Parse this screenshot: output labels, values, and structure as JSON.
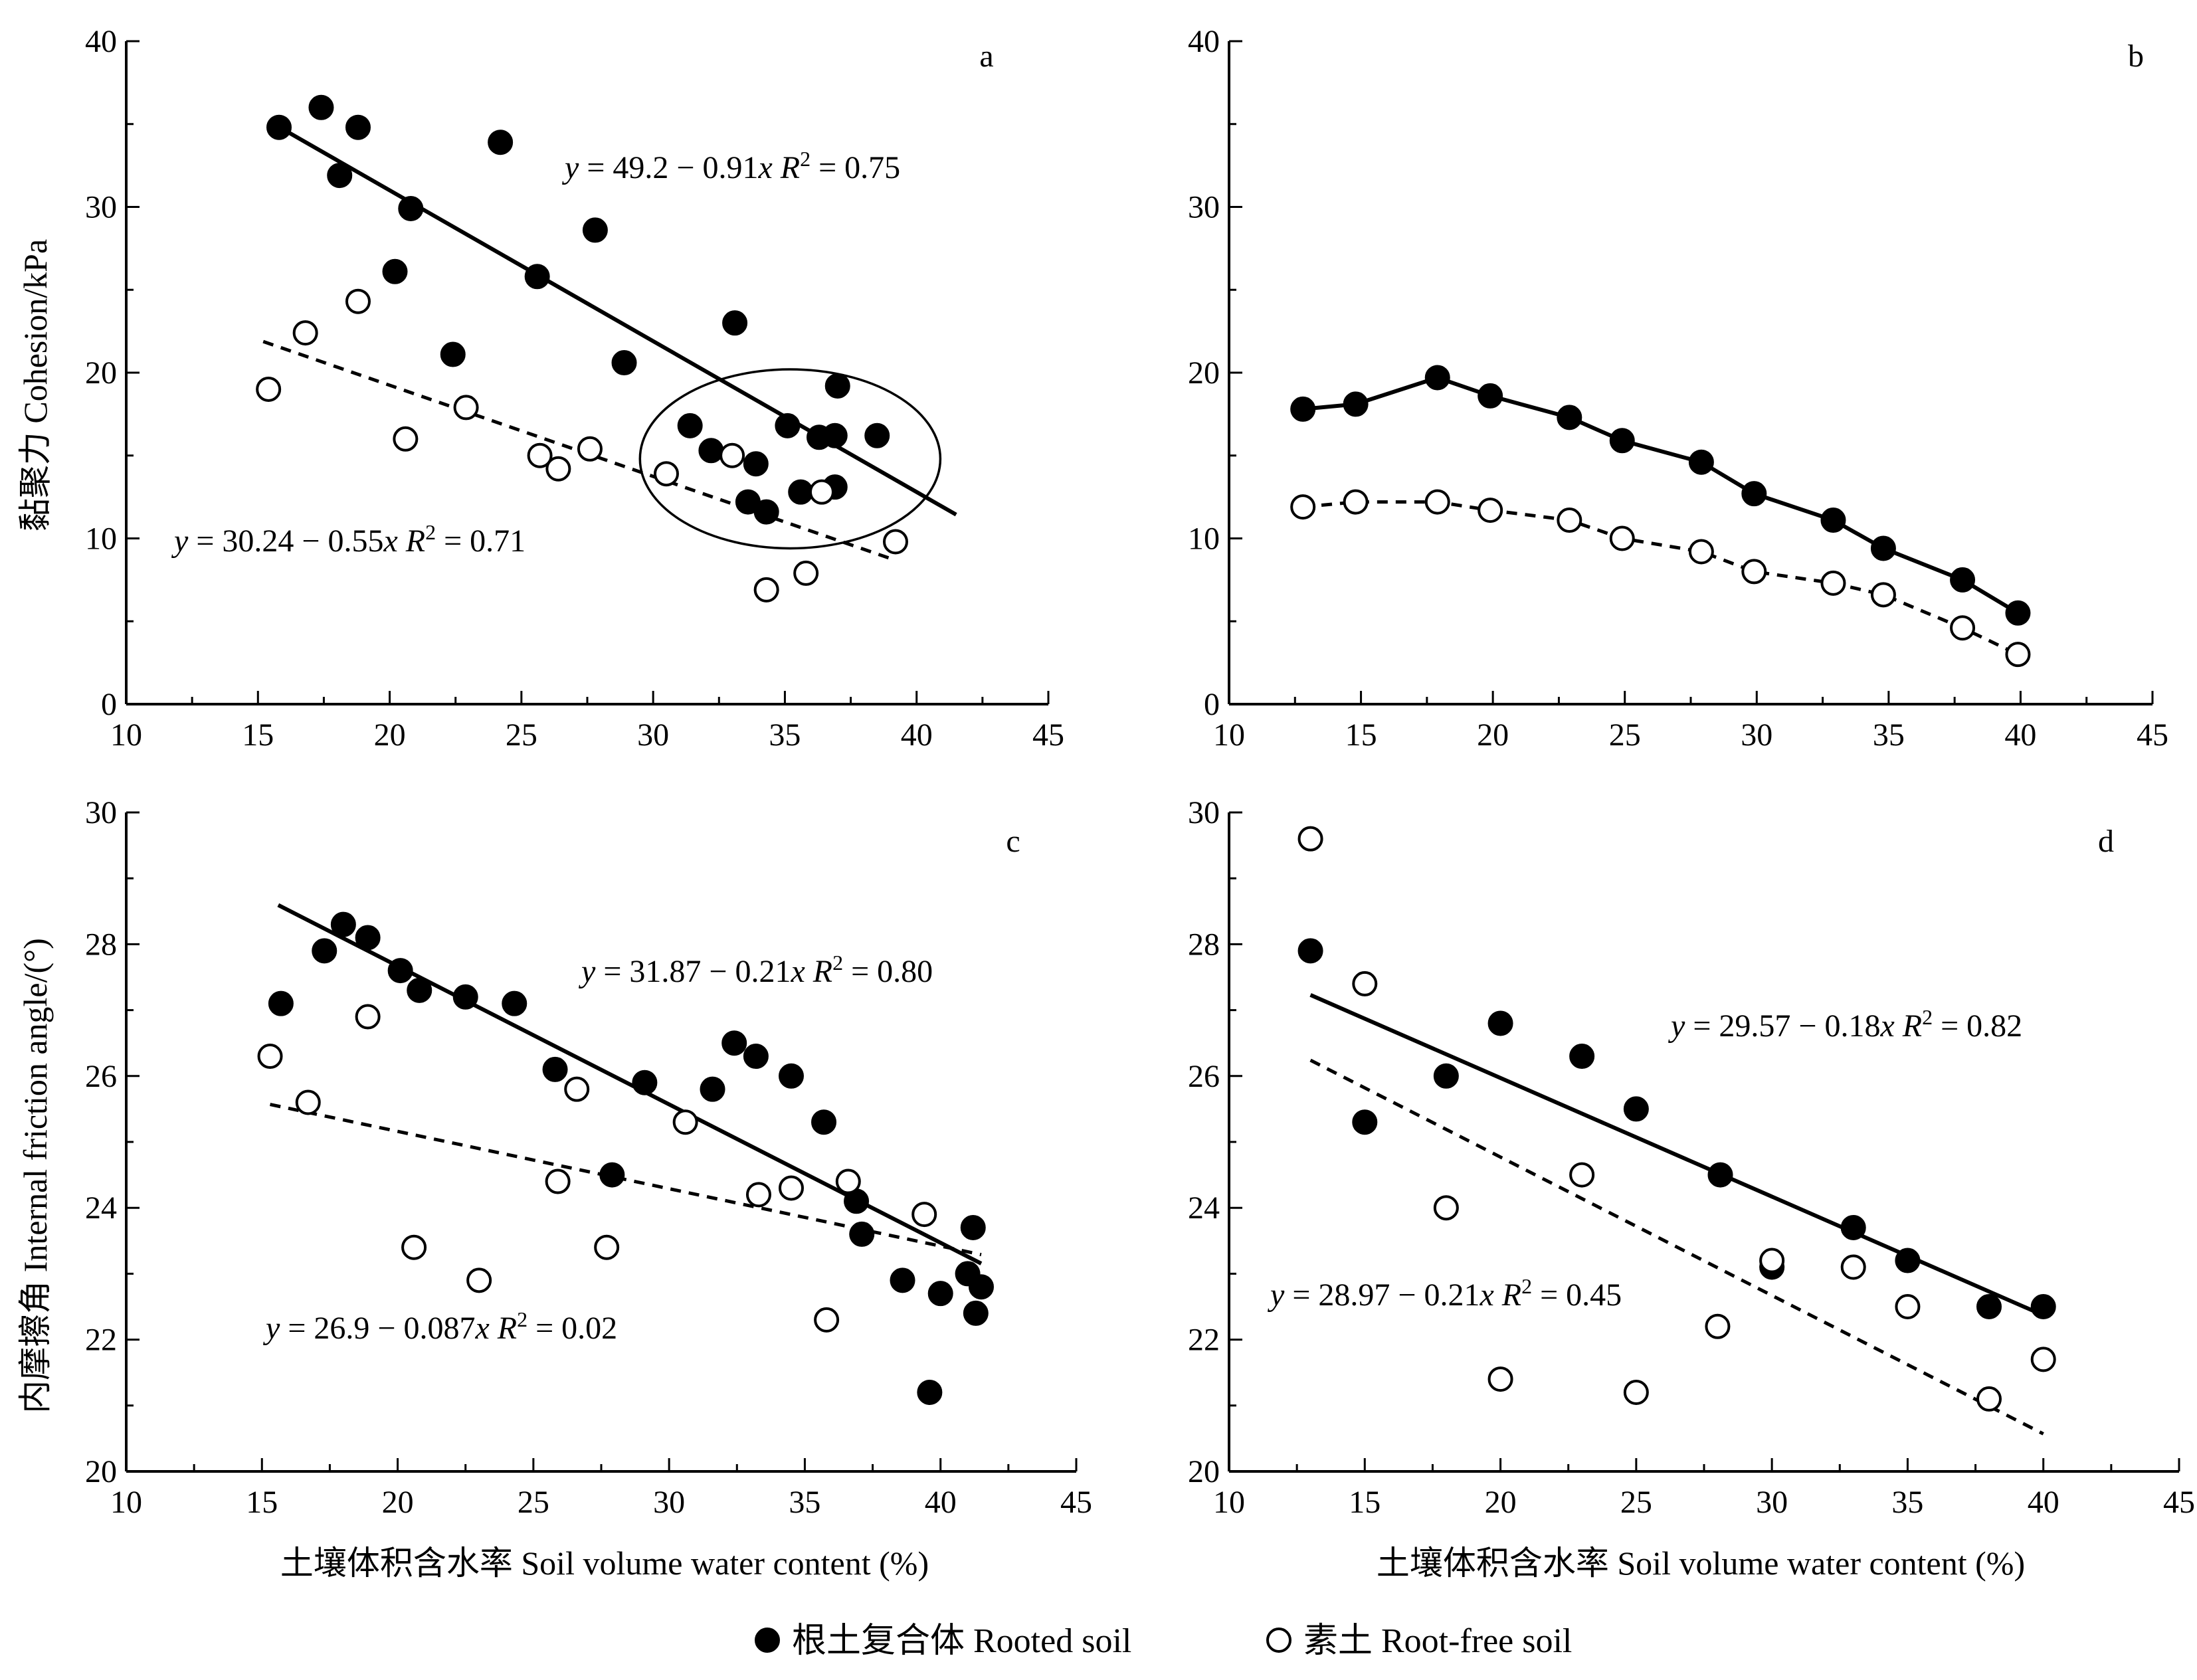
{
  "legend": {
    "rooted_label": "根土复合体 Rooted soil",
    "rootfree_label": "素土 Root-free soil"
  },
  "y_labels": {
    "top": "黏聚力  Cohesion/kPa",
    "bottom": "内摩擦角  Internal friction angle/(°)"
  },
  "x_label": "土壤体积含水率  Soil volume water content (%)",
  "chart_data": [
    {
      "id": "a",
      "type": "scatter",
      "panel_letter": "a",
      "xlim": [
        10,
        45
      ],
      "ylim": [
        0,
        40
      ],
      "xticks": [
        10,
        15,
        20,
        25,
        30,
        35,
        40,
        45
      ],
      "yticks": [
        0,
        10,
        20,
        30,
        40
      ],
      "ylabel": "黏聚力  Cohesion/kPa",
      "xlabel": "",
      "series": [
        {
          "name": "根土复合体 Rooted soil",
          "marker": "filled",
          "points": [
            [
              15.8,
              34.8
            ],
            [
              17.4,
              36.0
            ],
            [
              18.1,
              31.9
            ],
            [
              18.8,
              34.8
            ],
            [
              20.2,
              26.1
            ],
            [
              20.8,
              29.9
            ],
            [
              22.4,
              21.1
            ],
            [
              24.2,
              33.9
            ],
            [
              25.6,
              25.8
            ],
            [
              27.8,
              28.6
            ],
            [
              28.9,
              20.6
            ],
            [
              31.4,
              16.8
            ],
            [
              32.2,
              15.3
            ],
            [
              33.1,
              23.0
            ],
            [
              33.6,
              12.2
            ],
            [
              33.9,
              14.5
            ],
            [
              34.3,
              11.6
            ],
            [
              35.1,
              16.8
            ],
            [
              35.6,
              12.8
            ],
            [
              36.3,
              16.1
            ],
            [
              36.9,
              13.1
            ],
            [
              36.9,
              16.2
            ],
            [
              37.0,
              19.2
            ],
            [
              38.5,
              16.2
            ]
          ],
          "fit_equation": "y = 49.2 − 0.91x  R² = 0.75",
          "fit": {
            "intercept": 49.2,
            "slope": -0.91,
            "x_range": [
              15.5,
              41.5
            ]
          }
        },
        {
          "name": "素土 Root-free soil",
          "marker": "open",
          "points": [
            [
              15.4,
              19.0
            ],
            [
              16.8,
              22.4
            ],
            [
              18.8,
              24.3
            ],
            [
              20.6,
              16.0
            ],
            [
              22.9,
              17.9
            ],
            [
              25.7,
              15.0
            ],
            [
              26.4,
              14.2
            ],
            [
              27.6,
              15.4
            ],
            [
              30.5,
              13.9
            ],
            [
              33.0,
              15.0
            ],
            [
              34.3,
              6.9
            ],
            [
              35.8,
              7.9
            ],
            [
              36.4,
              12.8
            ],
            [
              39.2,
              9.8
            ]
          ],
          "fit_equation": "y = 30.24 − 0.55x  R² = 0.71",
          "fit": {
            "intercept": 30.24,
            "slope": -0.55,
            "x_range": [
              15.2,
              39.2
            ]
          }
        }
      ],
      "annotations": [
        {
          "type": "ellipse",
          "center": [
            35.2,
            14.8
          ],
          "radius": [
            5.7,
            5.4
          ]
        }
      ]
    },
    {
      "id": "b",
      "type": "line",
      "panel_letter": "b",
      "xlim": [
        10,
        45
      ],
      "ylim": [
        0,
        40
      ],
      "xticks": [
        10,
        15,
        20,
        25,
        30,
        35,
        40,
        45
      ],
      "yticks": [
        0,
        10,
        20,
        30,
        40
      ],
      "xlabel": "",
      "ylabel": "",
      "series": [
        {
          "name": "根土复合体 Rooted soil",
          "marker": "filled",
          "line": "solid",
          "points": [
            [
              12.8,
              17.8
            ],
            [
              14.8,
              18.1
            ],
            [
              17.9,
              19.7
            ],
            [
              19.9,
              18.6
            ],
            [
              22.9,
              17.3
            ],
            [
              24.9,
              15.9
            ],
            [
              27.9,
              14.6
            ],
            [
              29.9,
              12.7
            ],
            [
              32.9,
              11.1
            ],
            [
              34.8,
              9.4
            ],
            [
              37.8,
              7.5
            ],
            [
              39.9,
              5.5
            ]
          ]
        },
        {
          "name": "素土 Root-free soil",
          "marker": "open",
          "line": "dashed",
          "points": [
            [
              12.8,
              11.9
            ],
            [
              14.8,
              12.2
            ],
            [
              17.9,
              12.2
            ],
            [
              19.9,
              11.7
            ],
            [
              22.9,
              11.1
            ],
            [
              24.9,
              10.0
            ],
            [
              27.9,
              9.2
            ],
            [
              29.9,
              8.0
            ],
            [
              32.9,
              7.3
            ],
            [
              34.8,
              6.6
            ],
            [
              37.8,
              4.6
            ],
            [
              39.9,
              3.0
            ]
          ]
        }
      ]
    },
    {
      "id": "c",
      "type": "scatter",
      "panel_letter": "c",
      "xlim": [
        10,
        45
      ],
      "ylim": [
        20,
        30
      ],
      "xticks": [
        10,
        15,
        20,
        25,
        30,
        35,
        40,
        45
      ],
      "yticks": [
        20,
        22,
        24,
        26,
        28,
        30
      ],
      "ylabel": "内摩擦角  Internal friction angle/(°)",
      "xlabel": "土壤体积含水率  Soil volume water content (%)",
      "series": [
        {
          "name": "根土复合体 Rooted soil",
          "marker": "filled",
          "points": [
            [
              15.7,
              27.1
            ],
            [
              17.3,
              27.9
            ],
            [
              18.0,
              28.3
            ],
            [
              18.9,
              28.1
            ],
            [
              20.1,
              27.6
            ],
            [
              20.8,
              27.3
            ],
            [
              22.5,
              27.2
            ],
            [
              24.3,
              27.1
            ],
            [
              25.8,
              26.1
            ],
            [
              27.9,
              24.5
            ],
            [
              29.1,
              25.9
            ],
            [
              31.6,
              25.8
            ],
            [
              32.4,
              26.5
            ],
            [
              33.2,
              26.3
            ],
            [
              34.5,
              26.0
            ],
            [
              35.7,
              25.3
            ],
            [
              36.9,
              24.1
            ],
            [
              37.1,
              23.6
            ],
            [
              38.6,
              22.9
            ],
            [
              39.6,
              21.2
            ],
            [
              40.0,
              22.7
            ],
            [
              41.0,
              23.0
            ],
            [
              41.2,
              23.7
            ],
            [
              41.3,
              22.4
            ],
            [
              41.5,
              22.8
            ]
          ],
          "fit_equation": "y = 31.87 − 0.21x  R² = 0.80",
          "fit": {
            "intercept": 31.87,
            "slope": -0.21,
            "x_range": [
              15.6,
              41.5
            ]
          }
        },
        {
          "name": "素土 Root-free soil",
          "marker": "open",
          "points": [
            [
              15.3,
              26.3
            ],
            [
              16.7,
              25.6
            ],
            [
              18.9,
              26.9
            ],
            [
              20.6,
              23.4
            ],
            [
              23.0,
              22.9
            ],
            [
              25.9,
              24.4
            ],
            [
              26.6,
              25.8
            ],
            [
              27.7,
              23.4
            ],
            [
              30.6,
              25.3
            ],
            [
              33.3,
              24.2
            ],
            [
              34.5,
              24.3
            ],
            [
              35.8,
              22.3
            ],
            [
              36.6,
              24.4
            ],
            [
              39.4,
              23.9
            ]
          ],
          "fit_equation": "y = 26.9 − 0.087x  R² = 0.02",
          "fit": {
            "intercept": 26.9,
            "slope": -0.087,
            "x_range": [
              15.3,
              41.5
            ]
          }
        }
      ]
    },
    {
      "id": "d",
      "type": "scatter",
      "panel_letter": "d",
      "xlim": [
        10,
        45
      ],
      "ylim": [
        20,
        30
      ],
      "xticks": [
        10,
        15,
        20,
        25,
        30,
        35,
        40,
        45
      ],
      "yticks": [
        20,
        22,
        24,
        26,
        28,
        30
      ],
      "ylabel": "",
      "xlabel": "土壤体积含水率  Soil volume water content (%)",
      "series": [
        {
          "name": "根土复合体 Rooted soil",
          "marker": "filled",
          "points": [
            [
              13.0,
              27.9
            ],
            [
              15.0,
              25.3
            ],
            [
              18.0,
              26.0
            ],
            [
              20.0,
              26.8
            ],
            [
              23.0,
              26.3
            ],
            [
              25.0,
              25.5
            ],
            [
              28.1,
              24.5
            ],
            [
              30.0,
              23.1
            ],
            [
              33.0,
              23.7
            ],
            [
              35.0,
              23.2
            ],
            [
              38.0,
              22.5
            ],
            [
              40.0,
              22.5
            ]
          ],
          "fit_equation": "y = 29.57 − 0.18x  R² = 0.82",
          "fit": {
            "intercept": 29.57,
            "slope": -0.18,
            "x_range": [
              13.0,
              40.0
            ]
          }
        },
        {
          "name": "素土 Root-free soil",
          "marker": "open",
          "points": [
            [
              13.0,
              29.6
            ],
            [
              15.0,
              27.4
            ],
            [
              18.0,
              24.0
            ],
            [
              20.0,
              21.4
            ],
            [
              23.0,
              24.5
            ],
            [
              25.0,
              21.2
            ],
            [
              28.0,
              22.2
            ],
            [
              30.0,
              23.2
            ],
            [
              33.0,
              23.1
            ],
            [
              35.0,
              22.5
            ],
            [
              38.0,
              21.1
            ],
            [
              40.0,
              21.7
            ]
          ],
          "fit_equation": "y = 28.97 − 0.21x  R² = 0.45",
          "fit": {
            "intercept": 28.97,
            "slope": -0.21,
            "x_range": [
              13.0,
              40.0
            ]
          }
        }
      ]
    }
  ]
}
